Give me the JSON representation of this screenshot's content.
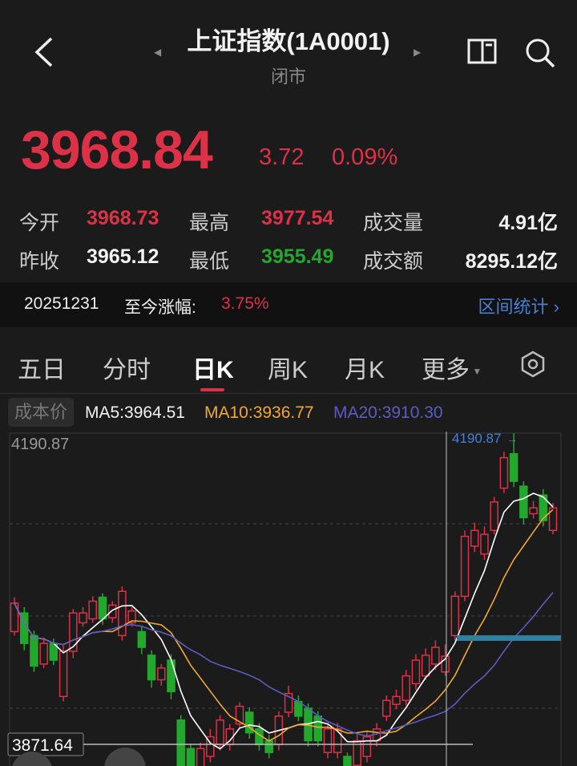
{
  "header": {
    "title": "上证指数(1A0001)",
    "status": "闭市",
    "back_icon": "back-arrow-icon",
    "book_icon": "book-icon",
    "search_icon": "search-icon"
  },
  "quote": {
    "price": "3968.84",
    "change": "3.72",
    "change_pct": "0.09%"
  },
  "stats": [
    {
      "label": "今开",
      "value": "3968.73",
      "color": "red"
    },
    {
      "label": "最高",
      "value": "3977.54",
      "color": "red"
    },
    {
      "label": "成交量",
      "value": "4.91亿",
      "color": "white"
    },
    {
      "label": "昨收",
      "value": "3965.12",
      "color": "white"
    },
    {
      "label": "最低",
      "value": "3955.49",
      "color": "green"
    },
    {
      "label": "成交额",
      "value": "8295.12亿",
      "color": "white"
    }
  ],
  "strip": {
    "date": "20251231",
    "label": "至今涨幅:",
    "value": "3.75%",
    "link": "区间统计"
  },
  "tabs": [
    {
      "label": "五日"
    },
    {
      "label": "分时"
    },
    {
      "label": "日K",
      "active": true
    },
    {
      "label": "周K"
    },
    {
      "label": "月K"
    },
    {
      "label": "更多"
    }
  ],
  "legend": {
    "cost": "成本价",
    "ma5": "MA5:3964.51",
    "ma10": "MA10:3936.77",
    "ma20": "MA20:3910.30"
  },
  "colors": {
    "up": "#dc3147",
    "down": "#22a82c",
    "ma5": "#ffffff",
    "ma10": "#f0a830",
    "ma20": "#5c5cc0",
    "accent": "#4a7fd6"
  },
  "chart_data": {
    "type": "candlestick",
    "y_max_label": "4190.87",
    "crosshair_label": "4190.87",
    "crosshair_price_label": "3871.64",
    "ylim": [
      3849,
      4191
    ],
    "candles": [
      [
        3989,
        4018,
        4024,
        3985
      ],
      [
        4008,
        3977,
        4014,
        3970
      ],
      [
        3985,
        3954,
        3990,
        3948
      ],
      [
        3956,
        3977,
        3983,
        3952
      ],
      [
        3977,
        3960,
        3982,
        3955
      ],
      [
        3923,
        3969,
        3975,
        3918
      ],
      [
        3969,
        4008,
        4012,
        3962
      ],
      [
        3998,
        4008,
        4014,
        3994
      ],
      [
        4002,
        4020,
        4025,
        3998
      ],
      [
        4024,
        4002,
        4028,
        3996
      ],
      [
        4003,
        4016,
        4020,
        3998
      ],
      [
        3985,
        4030,
        4035,
        3980
      ],
      [
        3998,
        4010,
        4014,
        3994
      ],
      [
        3989,
        3973,
        3994,
        3966
      ],
      [
        3965,
        3940,
        3970,
        3932
      ],
      [
        3940,
        3952,
        3956,
        3934
      ],
      [
        3960,
        3928,
        3966,
        3920
      ],
      [
        3899,
        3849,
        3904,
        3849
      ],
      [
        3870,
        3849,
        3875,
        3849
      ],
      [
        3849,
        3870,
        3876,
        3849
      ],
      [
        3862,
        3882,
        3890,
        3856
      ],
      [
        3874,
        3899,
        3904,
        3868
      ],
      [
        3874,
        3890,
        3895,
        3868
      ],
      [
        3895,
        3913,
        3917,
        3890
      ],
      [
        3907,
        3886,
        3912,
        3880
      ],
      [
        3890,
        3874,
        3896,
        3868
      ],
      [
        3878,
        3866,
        3884,
        3860
      ],
      [
        3874,
        3903,
        3908,
        3868
      ],
      [
        3907,
        3926,
        3934,
        3902
      ],
      [
        3918,
        3903,
        3924,
        3898
      ],
      [
        3911,
        3878,
        3916,
        3872
      ],
      [
        3903,
        3878,
        3908,
        3872
      ],
      [
        3866,
        3890,
        3896,
        3860
      ],
      [
        3866,
        3890,
        3896,
        3860
      ],
      [
        3862,
        3849,
        3866,
        3849
      ],
      [
        3853,
        3878,
        3884,
        3849
      ],
      [
        3862,
        3882,
        3888,
        3856
      ],
      [
        3878,
        3890,
        3896,
        3872
      ],
      [
        3903,
        3919,
        3924,
        3898
      ],
      [
        3915,
        3923,
        3930,
        3910
      ],
      [
        3919,
        3944,
        3950,
        3914
      ],
      [
        3936,
        3960,
        3966,
        3930
      ],
      [
        3944,
        3965,
        3972,
        3940
      ],
      [
        3956,
        3973,
        3980,
        3950
      ],
      [
        3948,
        3964,
        3976,
        3944
      ],
      [
        3985,
        4025,
        4030,
        3980
      ],
      [
        4025,
        4086,
        4092,
        4020
      ],
      [
        4076,
        4092,
        4100,
        4070
      ],
      [
        4068,
        4088,
        4096,
        4062
      ],
      [
        4092,
        4121,
        4126,
        4088
      ],
      [
        4135,
        4166,
        4172,
        4130
      ],
      [
        4170,
        4142,
        4191,
        4136
      ],
      [
        4137,
        4105,
        4142,
        4098
      ],
      [
        4109,
        4115,
        4122,
        4104
      ],
      [
        4128,
        4102,
        4134,
        4096
      ],
      [
        4092,
        4115,
        4120,
        4088
      ]
    ]
  }
}
